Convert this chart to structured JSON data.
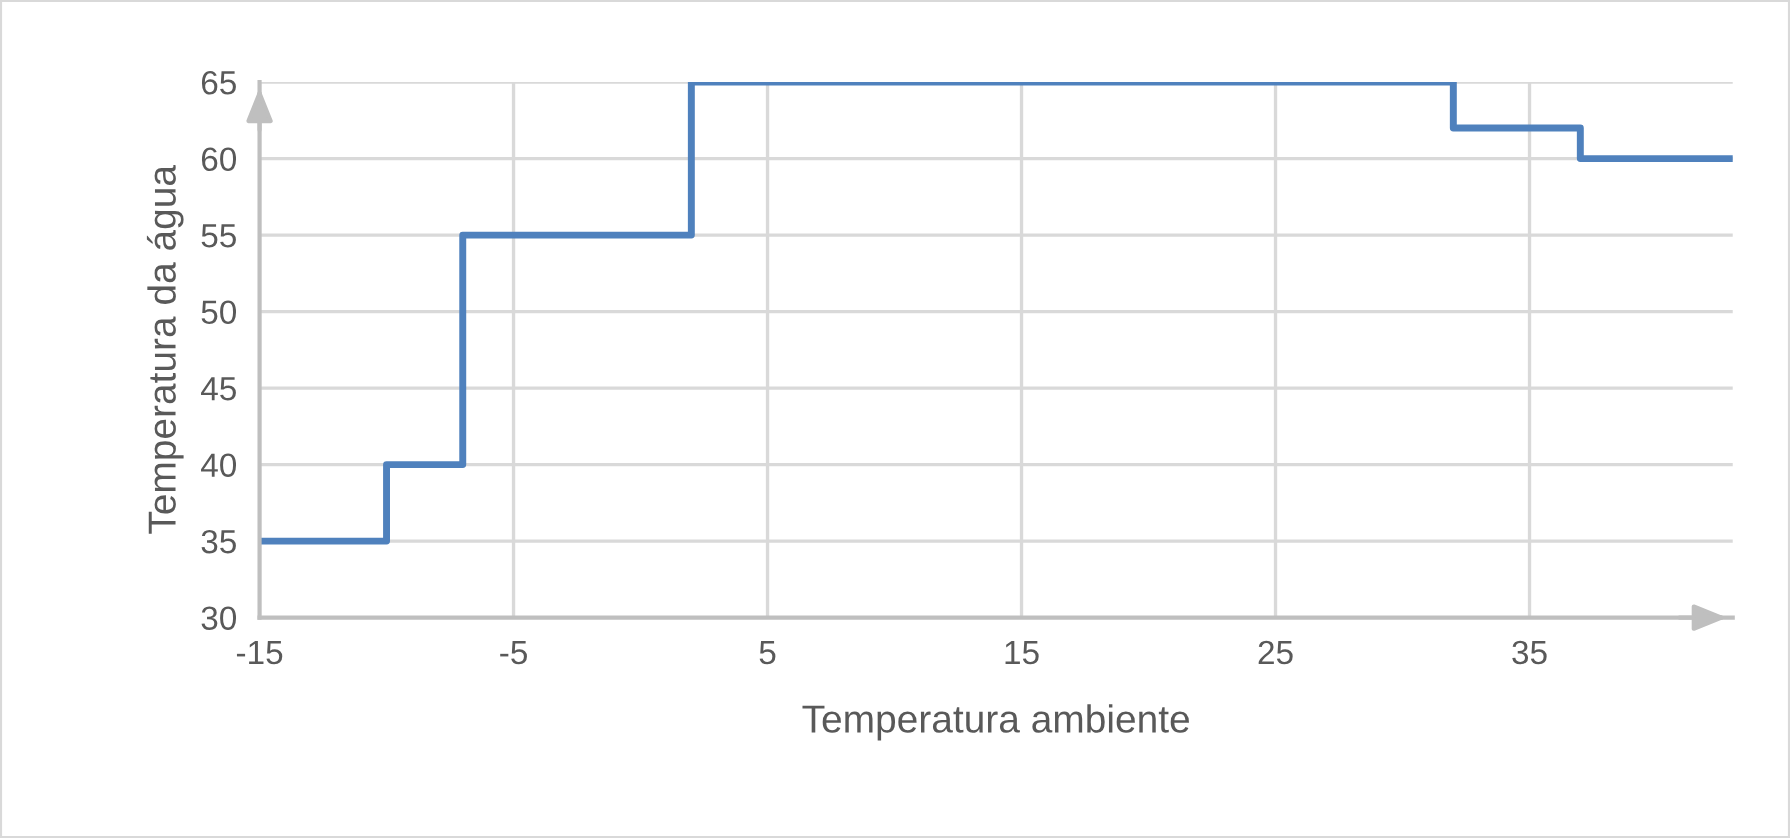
{
  "chart_data": {
    "type": "step",
    "xlabel": "Temperatura ambiente",
    "ylabel": "Temperatura da água",
    "x": [
      -15,
      -10,
      -7,
      2,
      32,
      37,
      43
    ],
    "series": [
      {
        "color": "#4f81bd",
        "values": [
          35,
          40,
          55,
          65,
          62,
          60,
          60
        ]
      }
    ],
    "xlim": [
      -15,
      43
    ],
    "xticks": [
      -15,
      -5,
      5,
      15,
      25,
      35
    ],
    "ylim": [
      30,
      65
    ],
    "yticks": [
      30,
      35,
      40,
      45,
      50,
      55,
      60,
      65
    ],
    "grid": true,
    "marker": "none",
    "line_style": "solid"
  }
}
